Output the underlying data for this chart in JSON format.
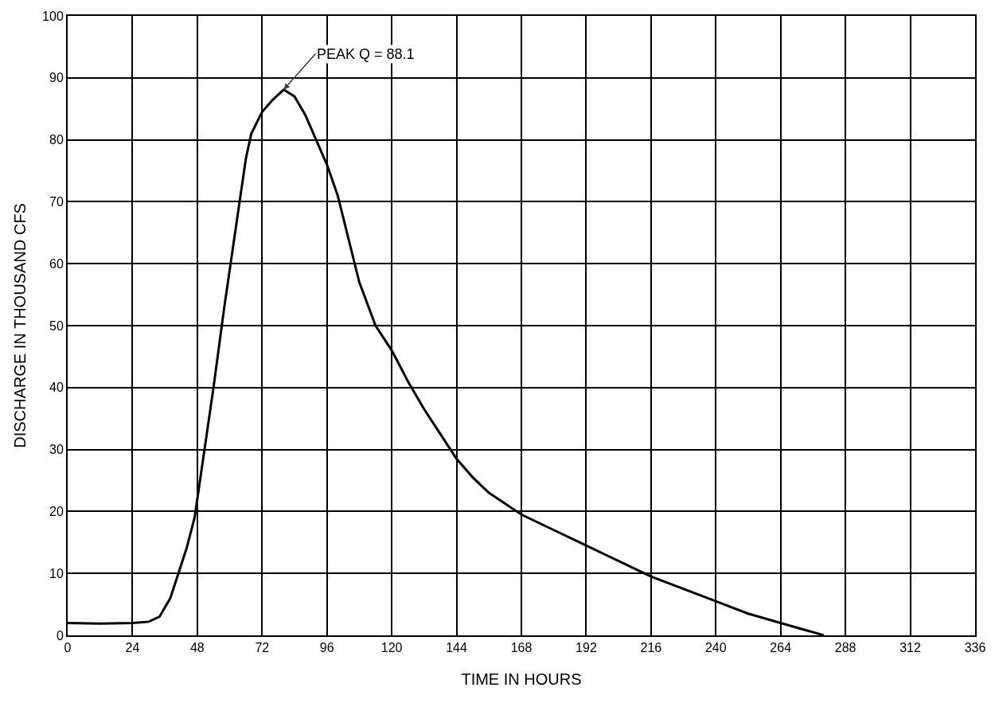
{
  "chart_data": {
    "type": "line",
    "xlabel": "TIME IN HOURS",
    "ylabel": "DISCHARGE IN THOUSAND CFS",
    "x": [
      0,
      12,
      24,
      30,
      34,
      38,
      41,
      44,
      47,
      50,
      54,
      58,
      62,
      66,
      68,
      72,
      76,
      80,
      84,
      88,
      92,
      96,
      100,
      104,
      108,
      114,
      120,
      126,
      132,
      138,
      144,
      150,
      156,
      168,
      180,
      192,
      204,
      216,
      228,
      240,
      252,
      264,
      272,
      280
    ],
    "series": [
      {
        "color": "#000000",
        "values": [
          2,
          1.9,
          2,
          2.2,
          3,
          6,
          10,
          14,
          19,
          28,
          40,
          53,
          65,
          77,
          81,
          84.5,
          86.5,
          88.1,
          87,
          84,
          80,
          76,
          71,
          64,
          57,
          50,
          46,
          41,
          36.5,
          32.5,
          28.5,
          25.5,
          23,
          19.5,
          17,
          14.5,
          12,
          9.5,
          7.5,
          5.5,
          3.5,
          2,
          1,
          0
        ]
      }
    ],
    "xlim": [
      0,
      336
    ],
    "xticks": [
      0,
      24,
      48,
      72,
      96,
      120,
      144,
      168,
      192,
      216,
      240,
      264,
      288,
      312,
      336
    ],
    "ylim": [
      0,
      100
    ],
    "yticks": [
      0,
      10,
      20,
      30,
      40,
      50,
      60,
      70,
      80,
      90,
      100
    ],
    "grid": true,
    "legend": false,
    "marker": "none",
    "line_style": "solid",
    "annotations": [
      {
        "text": "PEAK Q = 88.1",
        "x": 80,
        "y": 88.1
      }
    ]
  }
}
